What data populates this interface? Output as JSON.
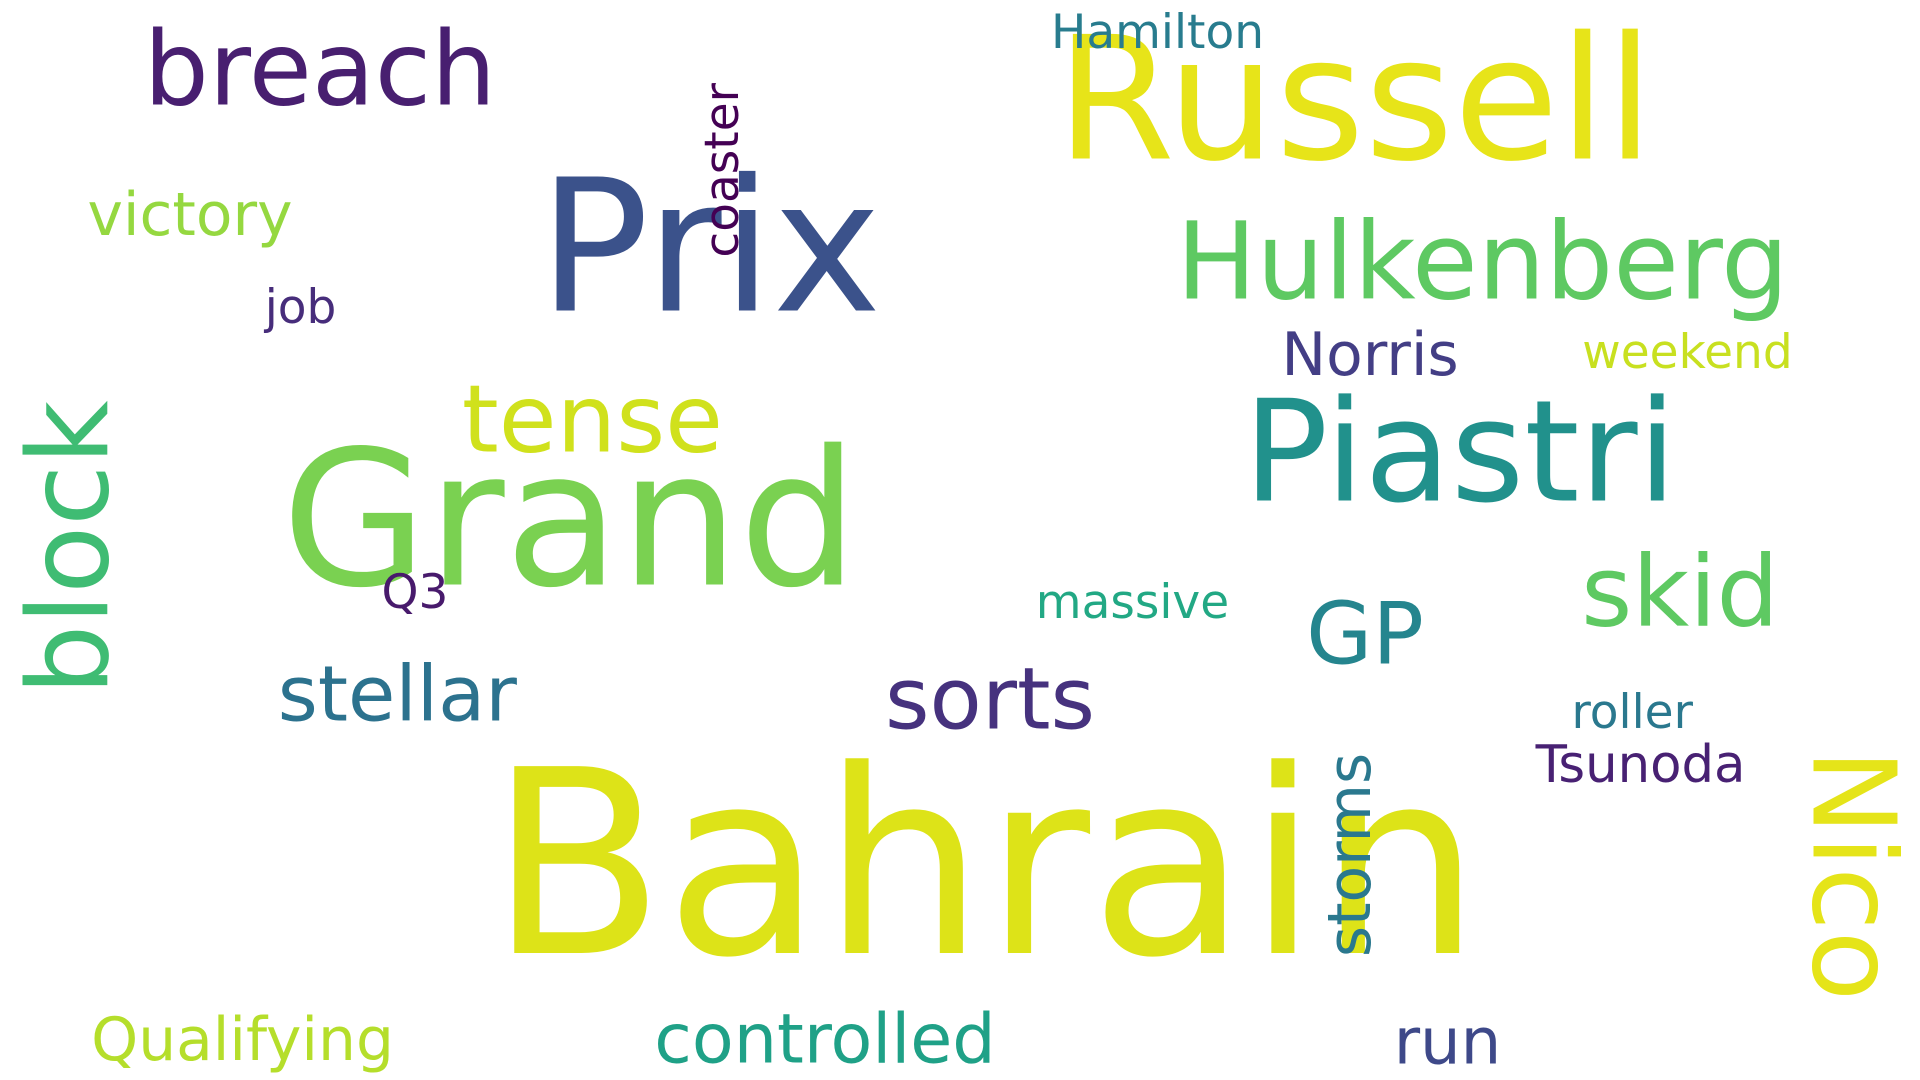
{
  "word_cloud": {
    "background": "#ffffff",
    "palette_note": "viridis",
    "words": [
      {
        "id": "bahrain",
        "text": "Bahrain",
        "color": "#dde318"
      },
      {
        "id": "grand",
        "text": "Grand",
        "color": "#7ad151"
      },
      {
        "id": "prix",
        "text": "Prix",
        "color": "#3b528b"
      },
      {
        "id": "russell",
        "text": "Russell",
        "color": "#e7e419"
      },
      {
        "id": "piastri",
        "text": "Piastri",
        "color": "#21918c"
      },
      {
        "id": "hulkenberg",
        "text": "Hulkenberg",
        "color": "#5ec962"
      },
      {
        "id": "breach",
        "text": "breach",
        "color": "#481f70"
      },
      {
        "id": "block",
        "text": "block",
        "color": "#3fbc73"
      },
      {
        "id": "nico",
        "text": "Nico",
        "color": "#e5e419"
      },
      {
        "id": "tense",
        "text": "tense",
        "color": "#d0e11c"
      },
      {
        "id": "sorts",
        "text": "sorts",
        "color": "#46327e"
      },
      {
        "id": "skid",
        "text": "skid",
        "color": "#5ec962"
      },
      {
        "id": "gp",
        "text": "GP",
        "color": "#25858e"
      },
      {
        "id": "stellar",
        "text": "stellar",
        "color": "#2c728e"
      },
      {
        "id": "controlled",
        "text": "controlled",
        "color": "#1fa187"
      },
      {
        "id": "run",
        "text": "run",
        "color": "#3e4989"
      },
      {
        "id": "storms",
        "text": "storms",
        "color": "#2a788e"
      },
      {
        "id": "coaster",
        "text": "coaster",
        "color": "#440154"
      },
      {
        "id": "victory",
        "text": "victory",
        "color": "#95d840"
      },
      {
        "id": "norris",
        "text": "Norris",
        "color": "#433e85"
      },
      {
        "id": "weekend",
        "text": "weekend",
        "color": "#c8e020"
      },
      {
        "id": "qualifying",
        "text": "Qualifying",
        "color": "#b5de2b"
      },
      {
        "id": "massive",
        "text": "massive",
        "color": "#22a884"
      },
      {
        "id": "hamilton",
        "text": "Hamilton",
        "color": "#287c8e"
      },
      {
        "id": "roller",
        "text": "roller",
        "color": "#2a788e"
      },
      {
        "id": "tsunoda",
        "text": "Tsunoda",
        "color": "#482173"
      },
      {
        "id": "job",
        "text": "job",
        "color": "#472d7b"
      },
      {
        "id": "q3",
        "text": "Q3",
        "color": "#481a6c"
      }
    ]
  }
}
